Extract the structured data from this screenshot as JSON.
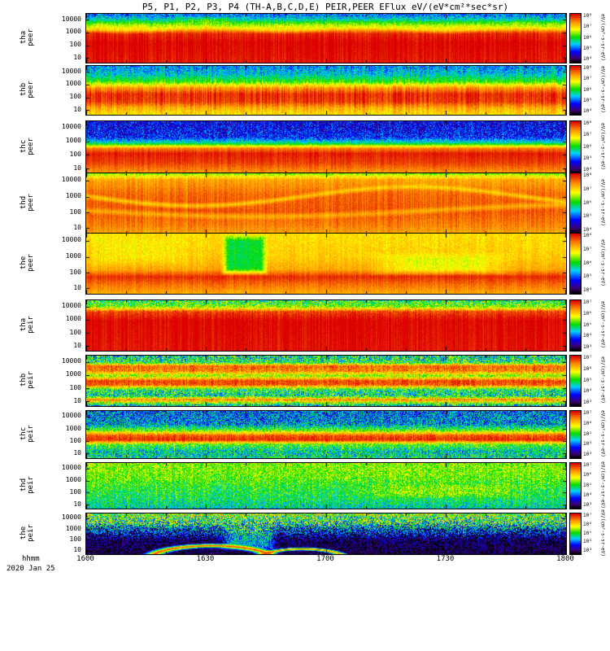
{
  "chart_data": {
    "type": "heatmap",
    "title": "P5, P1, P2, P3, P4 (TH-A,B,C,D,E) PEIR,PEER EFlux eV/(eV*cm²*sec*sr)",
    "xlabel": "hhmm",
    "date": "2020 Jan 25",
    "x_ticks": [
      "1600",
      "1630",
      "1700",
      "1730",
      "1800"
    ],
    "y_ticks": [
      "10000",
      "1000",
      "100",
      "10"
    ],
    "y_scale": "log",
    "y_unit": "eV",
    "z_unit": "eV/(eV*cm²*sec*sr)",
    "colorbar_unit": "eV/(cm²-s-sr-eV)",
    "legend_position": "right-per-panel",
    "grid": false,
    "colormap": [
      {
        "v": 0.0,
        "r": 0,
        "g": 0,
        "b": 0
      },
      {
        "v": 0.08,
        "r": 60,
        "g": 0,
        "b": 110
      },
      {
        "v": 0.22,
        "r": 0,
        "g": 0,
        "b": 255
      },
      {
        "v": 0.38,
        "r": 0,
        "g": 210,
        "b": 255
      },
      {
        "v": 0.52,
        "r": 0,
        "g": 220,
        "b": 0
      },
      {
        "v": 0.68,
        "r": 255,
        "g": 255,
        "b": 0
      },
      {
        "v": 0.84,
        "r": 255,
        "g": 140,
        "b": 0
      },
      {
        "v": 1.0,
        "r": 220,
        "g": 0,
        "b": 0
      }
    ],
    "panels": [
      {
        "id": "tha_peer",
        "label_line1": "tha",
        "label_line2": "peer",
        "colorbar_ticks": [
          "10⁸",
          "10⁷",
          "10⁶",
          "10⁵",
          "10⁴"
        ],
        "colnoise": 0.04,
        "profile": [
          {
            "y": 0,
            "v": 0.3,
            "n": 0.14
          },
          {
            "y": 0.1,
            "v": 0.4,
            "n": 0.1
          },
          {
            "y": 0.2,
            "v": 0.58,
            "n": 0.07
          },
          {
            "y": 0.3,
            "v": 0.75,
            "n": 0.05
          },
          {
            "y": 0.4,
            "v": 0.95,
            "n": 0.02
          },
          {
            "y": 0.6,
            "v": 1.0,
            "n": 0.02
          },
          {
            "y": 1,
            "v": 0.97,
            "n": 0.02
          }
        ],
        "features": [
          {
            "type": "rect",
            "x0": 0.18,
            "x1": 0.32,
            "y0": 0.04,
            "y1": 0.24,
            "v": 0.6,
            "soft": 0.8,
            "w": 0.55
          },
          {
            "type": "wave",
            "cy": 0.27,
            "amp": 0.05,
            "freq": 3,
            "width": 0.1,
            "v": 0.62,
            "w": 0.45
          }
        ]
      },
      {
        "id": "thb_peer",
        "label_line1": "thb",
        "label_line2": "peer",
        "colorbar_ticks": [
          "10⁸",
          "10⁷",
          "10⁶",
          "10⁵",
          "10⁴"
        ],
        "colnoise": 0.06,
        "profile": [
          {
            "y": 0,
            "v": 0.33,
            "n": 0.12
          },
          {
            "y": 0.18,
            "v": 0.4,
            "n": 0.1
          },
          {
            "y": 0.32,
            "v": 0.55,
            "n": 0.07
          },
          {
            "y": 0.45,
            "v": 0.82,
            "n": 0.04
          },
          {
            "y": 0.58,
            "v": 0.95,
            "n": 0.03
          },
          {
            "y": 0.74,
            "v": 0.93,
            "n": 0.03
          },
          {
            "y": 0.86,
            "v": 0.8,
            "n": 0.05
          },
          {
            "y": 1,
            "v": 0.72,
            "n": 0.07
          }
        ],
        "features": []
      },
      {
        "id": "thc_peer",
        "label_line1": "thc",
        "label_line2": "peer",
        "colorbar_ticks": [
          "10⁸",
          "10⁷",
          "10⁶",
          "10⁵",
          "10⁴"
        ],
        "colnoise": 0.03,
        "profile": [
          {
            "y": 0,
            "v": 0.2,
            "n": 0.14
          },
          {
            "y": 0.3,
            "v": 0.23,
            "n": 0.14
          },
          {
            "y": 0.42,
            "v": 0.45,
            "n": 0.08
          },
          {
            "y": 0.52,
            "v": 0.85,
            "n": 0.03
          },
          {
            "y": 0.62,
            "v": 0.97,
            "n": 0.02
          },
          {
            "y": 0.8,
            "v": 0.93,
            "n": 0.02
          },
          {
            "y": 1,
            "v": 0.82,
            "n": 0.04
          }
        ],
        "features": []
      },
      {
        "id": "thd_peer",
        "label_line1": "thd",
        "label_line2": "peer",
        "colorbar_ticks": [
          "10⁸",
          "10⁷",
          "10⁶",
          "10⁵",
          "10⁴"
        ],
        "colnoise": 0.04,
        "profile": [
          {
            "y": 0,
            "v": 0.6,
            "n": 0.07
          },
          {
            "y": 0.1,
            "v": 0.8,
            "n": 0.04
          },
          {
            "y": 0.35,
            "v": 0.88,
            "n": 0.03
          },
          {
            "y": 0.65,
            "v": 0.9,
            "n": 0.03
          },
          {
            "y": 0.88,
            "v": 0.85,
            "n": 0.03
          },
          {
            "y": 1,
            "v": 0.8,
            "n": 0.04
          }
        ],
        "features": [
          {
            "type": "wave",
            "cy": 0.38,
            "amp": 0.16,
            "freq": 1.1,
            "width": 0.06,
            "v": 0.7,
            "w": 0.75
          },
          {
            "type": "wave",
            "cy": 0.62,
            "amp": 0.1,
            "freq": 0.7,
            "width": 0.07,
            "v": 0.72,
            "w": 0.6
          }
        ]
      },
      {
        "id": "the_peer",
        "label_line1": "the",
        "label_line2": "peer",
        "colorbar_ticks": [
          "10⁸",
          "10⁷",
          "10⁶",
          "10⁵",
          "10⁴"
        ],
        "colnoise": 0.03,
        "profile": [
          {
            "y": 0,
            "v": 0.72,
            "n": 0.05
          },
          {
            "y": 0.4,
            "v": 0.75,
            "n": 0.05
          },
          {
            "y": 0.6,
            "v": 0.8,
            "n": 0.04
          },
          {
            "y": 0.72,
            "v": 0.95,
            "n": 0.02
          },
          {
            "y": 0.84,
            "v": 0.88,
            "n": 0.03
          },
          {
            "y": 1,
            "v": 0.8,
            "n": 0.04
          }
        ],
        "features": [
          {
            "type": "rect",
            "x0": 0.28,
            "x1": 0.38,
            "y0": 0,
            "y1": 0.7,
            "v": 0.47,
            "soft": 0.35,
            "w": 0.9
          },
          {
            "type": "rect",
            "x0": 0.58,
            "x1": 0.9,
            "y0": 0.3,
            "y1": 0.7,
            "v": 0.63,
            "soft": 0.6,
            "w": 0.7
          },
          {
            "type": "rect",
            "x0": 0,
            "x1": 0.22,
            "y0": 0,
            "y1": 0.55,
            "v": 0.68,
            "soft": 0.6,
            "w": 0.6
          }
        ]
      },
      {
        "id": "tha_peir",
        "label_line1": "tha",
        "label_line2": "peir",
        "colorbar_ticks": [
          "10⁷",
          "10⁶",
          "10⁵",
          "10⁴",
          "10³"
        ],
        "colnoise": 0.04,
        "profile": [
          {
            "y": 0,
            "v": 0.5,
            "n": 0.2
          },
          {
            "y": 0.12,
            "v": 0.6,
            "n": 0.15
          },
          {
            "y": 0.22,
            "v": 0.92,
            "n": 0.05
          },
          {
            "y": 0.4,
            "v": 1.0,
            "n": 0.02
          },
          {
            "y": 1,
            "v": 0.98,
            "n": 0.02
          }
        ],
        "features": []
      },
      {
        "id": "thb_peir",
        "label_line1": "thb",
        "label_line2": "peir",
        "colorbar_ticks": [
          "10⁷",
          "10⁶",
          "10⁵",
          "10⁴",
          "10³"
        ],
        "colnoise": 0.05,
        "profile": [
          {
            "y": 0,
            "v": 0.45,
            "n": 0.25
          },
          {
            "y": 0.13,
            "v": 0.5,
            "n": 0.2
          },
          {
            "y": 0.2,
            "v": 0.88,
            "n": 0.08
          },
          {
            "y": 0.3,
            "v": 0.85,
            "n": 0.1
          },
          {
            "y": 0.4,
            "v": 0.6,
            "n": 0.15
          },
          {
            "y": 0.5,
            "v": 0.92,
            "n": 0.06
          },
          {
            "y": 0.58,
            "v": 0.9,
            "n": 0.08
          },
          {
            "y": 0.68,
            "v": 0.5,
            "n": 0.2
          },
          {
            "y": 0.8,
            "v": 0.45,
            "n": 0.22
          },
          {
            "y": 0.88,
            "v": 0.85,
            "n": 0.1
          },
          {
            "y": 1,
            "v": 0.4,
            "n": 0.25
          }
        ],
        "features": []
      },
      {
        "id": "thc_peir",
        "label_line1": "thc",
        "label_line2": "peir",
        "colorbar_ticks": [
          "10⁷",
          "10⁶",
          "10⁵",
          "10⁴",
          "10³"
        ],
        "colnoise": 0.04,
        "profile": [
          {
            "y": 0,
            "v": 0.3,
            "n": 0.2
          },
          {
            "y": 0.28,
            "v": 0.35,
            "n": 0.2
          },
          {
            "y": 0.4,
            "v": 0.55,
            "n": 0.14
          },
          {
            "y": 0.52,
            "v": 0.9,
            "n": 0.06
          },
          {
            "y": 0.62,
            "v": 0.95,
            "n": 0.05
          },
          {
            "y": 0.72,
            "v": 0.55,
            "n": 0.15
          },
          {
            "y": 0.86,
            "v": 0.42,
            "n": 0.18
          },
          {
            "y": 1,
            "v": 0.45,
            "n": 0.2
          }
        ],
        "features": []
      },
      {
        "id": "thd_peir",
        "label_line1": "thd",
        "label_line2": "peir",
        "colorbar_ticks": [
          "10⁷",
          "10⁶",
          "10⁵",
          "10⁴",
          "10³"
        ],
        "colnoise": 0.04,
        "profile": [
          {
            "y": 0,
            "v": 0.6,
            "n": 0.12
          },
          {
            "y": 0.3,
            "v": 0.58,
            "n": 0.12
          },
          {
            "y": 0.55,
            "v": 0.52,
            "n": 0.13
          },
          {
            "y": 0.8,
            "v": 0.48,
            "n": 0.14
          },
          {
            "y": 1,
            "v": 0.42,
            "n": 0.15
          }
        ],
        "features": [
          {
            "type": "rect",
            "x0": 0.55,
            "x1": 0.95,
            "y0": 0.45,
            "y1": 0.78,
            "v": 0.66,
            "soft": 0.6,
            "w": 0.6
          }
        ]
      },
      {
        "id": "the_peir",
        "label_line1": "the",
        "label_line2": "peir",
        "colorbar_ticks": [
          "10⁷",
          "10⁶",
          "10⁵",
          "10⁴",
          "10³"
        ],
        "colnoise": 0.03,
        "profile": [
          {
            "y": 0,
            "v": 0.55,
            "n": 0.25
          },
          {
            "y": 0.22,
            "v": 0.5,
            "n": 0.3
          },
          {
            "y": 0.42,
            "v": 0.22,
            "n": 0.3
          },
          {
            "y": 0.65,
            "v": 0.06,
            "n": 0.18
          },
          {
            "y": 1,
            "v": 0.04,
            "n": 0.12
          }
        ],
        "features": [
          {
            "type": "rect",
            "x0": 0,
            "x1": 1,
            "y0": 0,
            "y1": 0.05,
            "v": 0.68,
            "soft": 0.5,
            "w": 0.8
          },
          {
            "type": "rect",
            "x0": 0.28,
            "x1": 0.4,
            "y0": 0.05,
            "y1": 0.95,
            "v": 0.5,
            "soft": 0.4,
            "w": 0.75
          },
          {
            "type": "arc",
            "cx": 0.26,
            "cy": 1.15,
            "rx": 0.13,
            "ry": 0.35,
            "ww": 0.2,
            "v": 0.95
          },
          {
            "type": "arc",
            "cx": 0.45,
            "cy": 1.2,
            "rx": 0.1,
            "ry": 0.32,
            "ww": 0.16,
            "v": 0.9
          }
        ]
      }
    ]
  }
}
